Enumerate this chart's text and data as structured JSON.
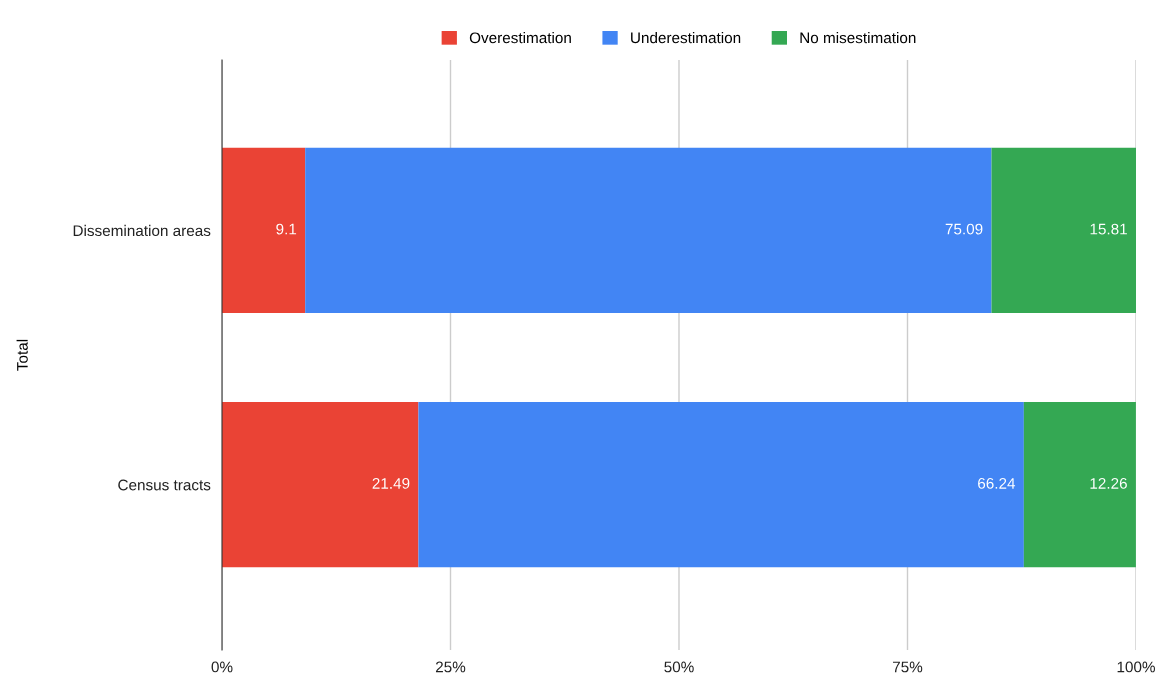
{
  "chart_data": {
    "type": "bar",
    "orientation": "horizontal",
    "stacked": true,
    "ylabel": "Total",
    "categories": [
      "Dissemination areas",
      "Census tracts"
    ],
    "series": [
      {
        "name": "Overestimation",
        "color": "#ea4335",
        "values": [
          9.1,
          21.49
        ]
      },
      {
        "name": "Underestimation",
        "color": "#4285f4",
        "values": [
          75.09,
          66.24
        ]
      },
      {
        "name": "No misestimation",
        "color": "#34a853",
        "values": [
          15.81,
          12.26
        ]
      }
    ],
    "xlim": [
      0,
      100
    ],
    "xticks": [
      {
        "value": 0,
        "label": "0%"
      },
      {
        "value": 25,
        "label": "25%"
      },
      {
        "value": 50,
        "label": "50%"
      },
      {
        "value": 75,
        "label": "75%"
      },
      {
        "value": 100,
        "label": "100%"
      }
    ],
    "grid": "x",
    "legend": "top",
    "data_labels": true
  }
}
